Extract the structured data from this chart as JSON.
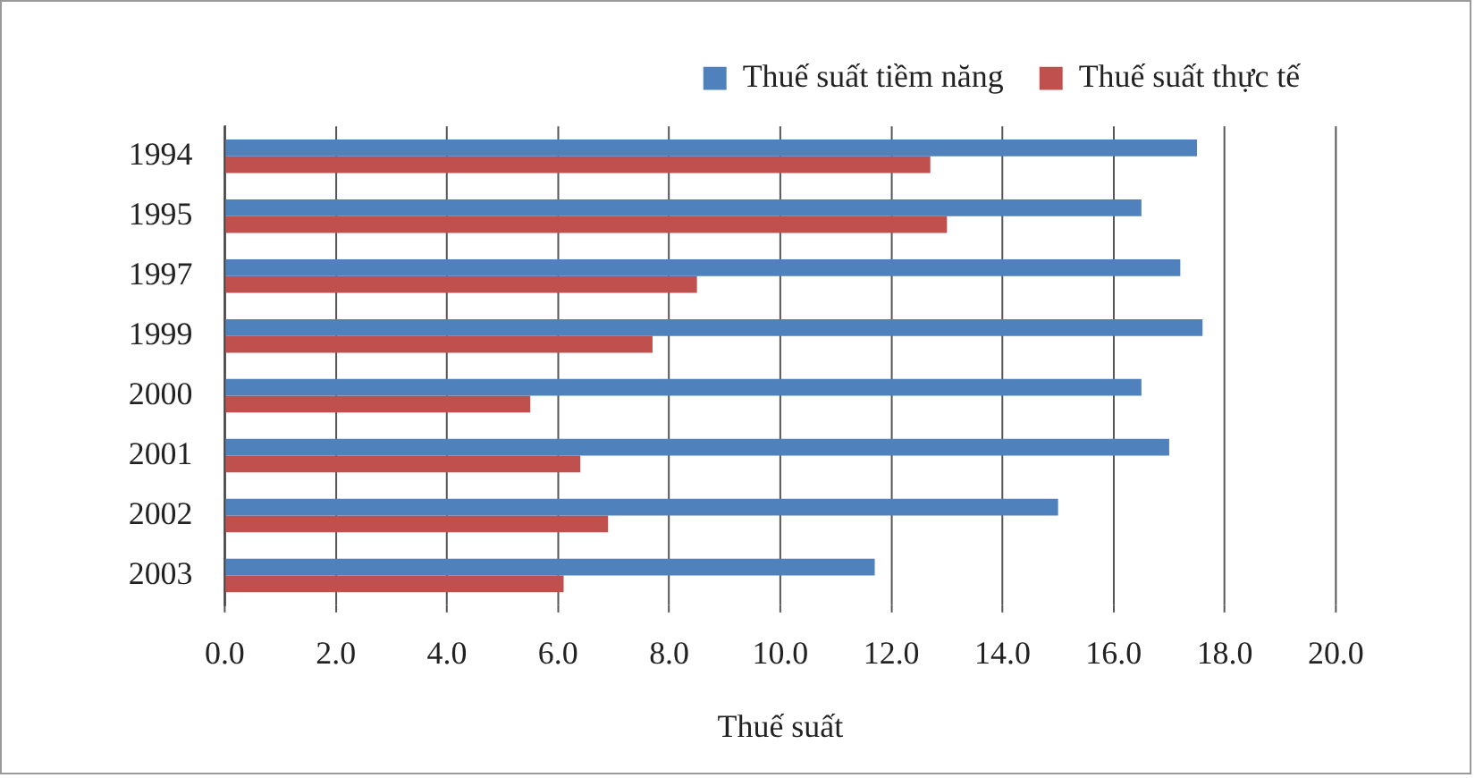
{
  "chart_data": {
    "type": "bar",
    "orientation": "horizontal",
    "xlabel": "Thuế suất",
    "categories": [
      "1994",
      "1995",
      "1997",
      "1999",
      "2000",
      "2001",
      "2002",
      "2003"
    ],
    "series": [
      {
        "name": "Thuế suất tiềm năng",
        "color": "#4f81bd",
        "values": [
          17.5,
          16.5,
          17.2,
          17.6,
          16.5,
          17.0,
          15.0,
          11.7
        ]
      },
      {
        "name": "Thuế suất thực tế",
        "color": "#c0504d",
        "values": [
          12.7,
          13.0,
          8.5,
          7.7,
          5.5,
          6.4,
          6.9,
          6.1
        ]
      }
    ],
    "xlim": [
      0,
      20
    ],
    "xticks": [
      {
        "value": 0,
        "label": "0.0"
      },
      {
        "value": 2,
        "label": "2.0"
      },
      {
        "value": 4,
        "label": "4.0"
      },
      {
        "value": 6,
        "label": "6.0"
      },
      {
        "value": 8,
        "label": "8.0"
      },
      {
        "value": 10,
        "label": "10.0"
      },
      {
        "value": 12,
        "label": "12.0"
      },
      {
        "value": 14,
        "label": "14.0"
      },
      {
        "value": 16,
        "label": "16.0"
      },
      {
        "value": 18,
        "label": "18.0"
      },
      {
        "value": 20,
        "label": "20.0"
      }
    ],
    "grid": "x",
    "legend": "top right"
  }
}
